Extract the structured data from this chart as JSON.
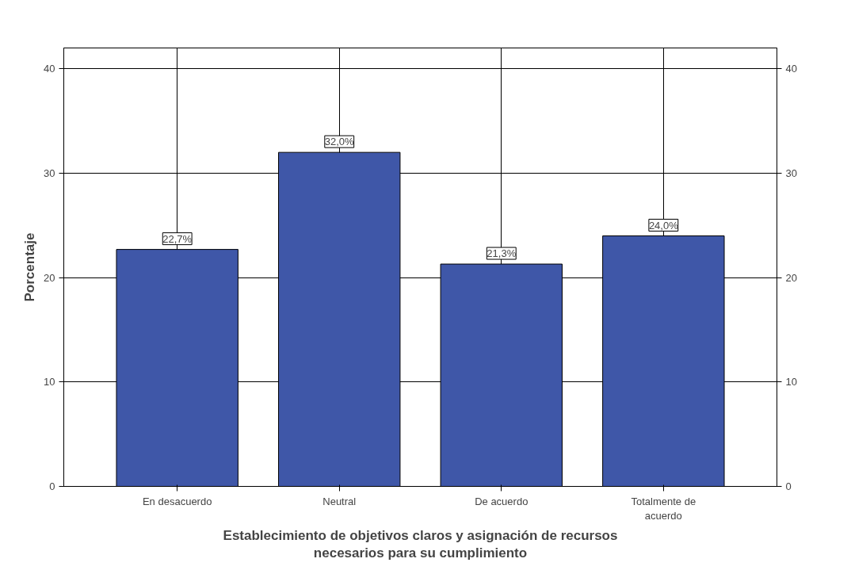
{
  "chart_data": {
    "type": "bar",
    "xlabel": "Establecimiento de objetivos claros y asignación de recursos necesarios para su cumplimiento",
    "ylabel": "Porcentaje",
    "categories": [
      "En desacuerdo",
      "Neutral",
      "De acuerdo",
      "Totalmente de acuerdo"
    ],
    "values": [
      22.7,
      32.0,
      21.3,
      24.0
    ],
    "value_labels": [
      "22,7%",
      "32,0%",
      "21,3%",
      "24,0%"
    ],
    "color": "#3f57a8",
    "ylim": [
      0,
      42
    ],
    "yticks": [
      0,
      10,
      20,
      30,
      40
    ],
    "y2lim": [
      0,
      42
    ],
    "y2ticks": [
      0,
      10,
      20,
      30,
      40
    ],
    "grid": true
  }
}
